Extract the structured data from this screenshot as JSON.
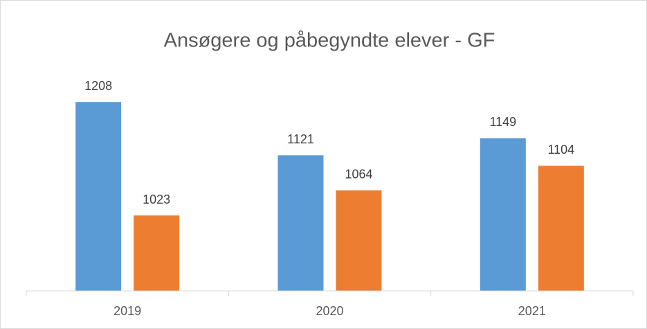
{
  "chart_data": {
    "type": "bar",
    "title": "Ansøgere og påbegyndte elever - GF",
    "categories": [
      "2019",
      "2020",
      "2021"
    ],
    "series": [
      {
        "color": "#5b9bd5",
        "values": [
          1208,
          1121,
          1149
        ]
      },
      {
        "color": "#ed7d31",
        "values": [
          1023,
          1064,
          1104
        ]
      }
    ],
    "ylim": [
      900,
      1250
    ],
    "grid": false
  }
}
